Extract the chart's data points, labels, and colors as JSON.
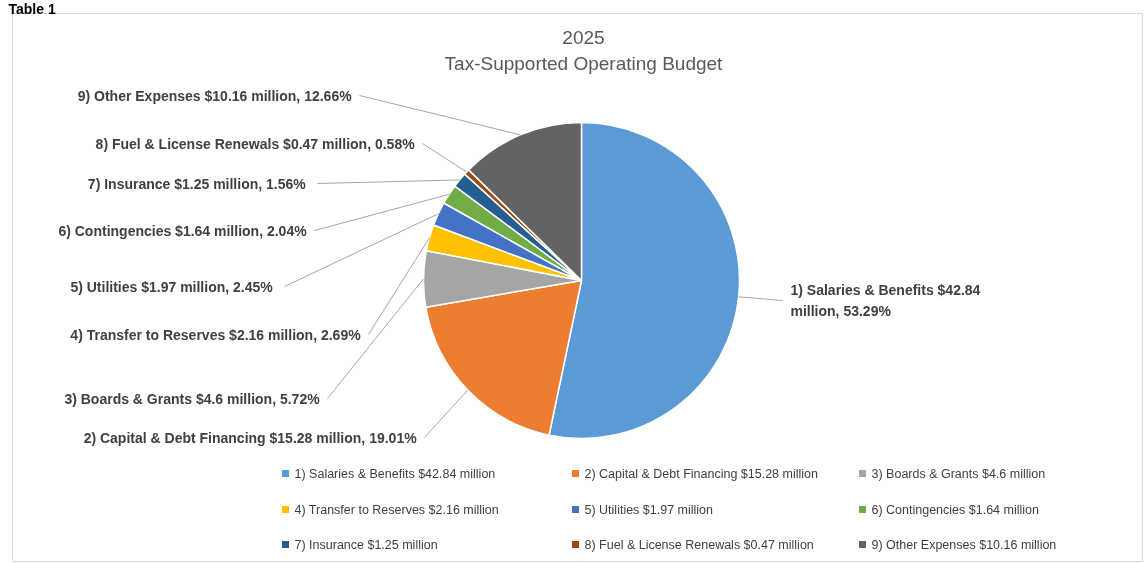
{
  "chart_data": {
    "type": "pie",
    "title": "2025",
    "subtitle": "Tax-Supported Operating Budget",
    "annotations": [
      "Table 1"
    ],
    "categories": [
      "1)  Salaries & Benefits $42.84 million",
      "2)  Capital & Debt Financing $15.28 million",
      "3)  Boards & Grants $4.6 million",
      "4)  Transfer to Reserves $2.16 million",
      "5)  Utilities  $1.97 million",
      "6)  Contingencies $1.64 million",
      "7)  Insurance  $1.25 million",
      "8)  Fuel & License Renewals $0.47 million",
      "9)  Other Expenses $10.16 million"
    ],
    "values": [
      53.29,
      19.01,
      5.72,
      2.69,
      2.45,
      2.04,
      1.56,
      0.58,
      12.66
    ],
    "colors": [
      "#5b9bd5",
      "#ed7d31",
      "#a5a5a5",
      "#ffc000",
      "#4472c4",
      "#70ad47",
      "#255e91",
      "#9e480e",
      "#636363"
    ],
    "value_labels": [
      "1)  Salaries & Benefits $42.84 million, 53.29%",
      "2)  Capital & Debt Financing $15.28 million, 19.01%",
      "3)  Boards & Grants $4.6 million, 5.72%",
      "4)  Transfer to Reserves $2.16 million, 2.69%",
      "5)  Utilities  $1.97 million, 2.45%",
      "6)  Contingencies $1.64 million, 2.04%",
      "7)  Insurance  $1.25 million, 1.56%",
      "8)  Fuel & License Renewals $0.47 million, 0.58%",
      "9)  Other Expenses $10.16 million, 12.66%"
    ],
    "legend": "bottom"
  }
}
